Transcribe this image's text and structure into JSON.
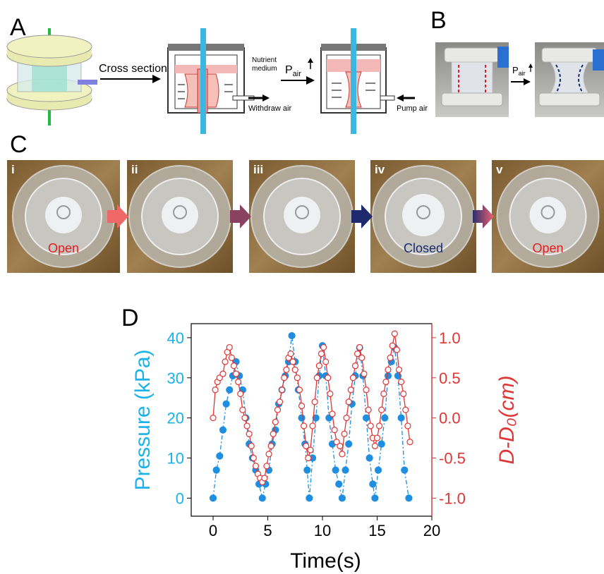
{
  "panel_labels": [
    "A",
    "B",
    "C",
    "D"
  ],
  "panel_a": {
    "cross_section": "Cross section",
    "nutrient": "Nutrient",
    "medium": "medium",
    "withdraw": "Withdraw air",
    "p": "P",
    "air": "air",
    "pump": "Pump air"
  },
  "panel_b": {
    "p": "P",
    "air": "air"
  },
  "panel_c": {
    "frames": [
      "i",
      "ii",
      "iii",
      "iv",
      "v"
    ],
    "states": [
      "Open",
      "Closed",
      "Open"
    ]
  },
  "chart_data": {
    "type": "line",
    "xlabel": "Time(s)",
    "ylabel": "Pressure (kPa)",
    "y2label": "D-D₀(cm)",
    "xlim": [
      -2,
      20
    ],
    "xticks": [
      0,
      5,
      10,
      15,
      20
    ],
    "ylim": [
      -4.5,
      43.5
    ],
    "yticks": [
      0,
      10,
      20,
      30,
      40
    ],
    "y2lim": [
      -1.225,
      1.175
    ],
    "y2ticks": [
      {
        "value": -1,
        "label": "-1.0"
      },
      -0.5,
      {
        "value": 0,
        "label": "0.0"
      },
      0.5,
      {
        "value": 1,
        "label": "1.0"
      }
    ],
    "series": [
      {
        "color": "#1e8fe0",
        "marker": "filled",
        "x": [
          0,
          0.3,
          0.6,
          0.9,
          1.2,
          1.5,
          1.8,
          2.1,
          2.4,
          2.7,
          3.0,
          3.3,
          3.6,
          3.9,
          4.2,
          4.5,
          4.8,
          5.1,
          5.4,
          5.7,
          6.0,
          6.3,
          6.6,
          6.9,
          7.2,
          7.5,
          7.8,
          8.1,
          8.4,
          8.6,
          8.8,
          9.1,
          9.4,
          9.7,
          10.0,
          10.3,
          10.6,
          10.9,
          11.2,
          11.5,
          11.8,
          12.1,
          12.4,
          12.7,
          13.0,
          13.4,
          13.7,
          14.0,
          14.3,
          14.6,
          14.8,
          15.1,
          15.4,
          15.7,
          16.0,
          16.3,
          16.6,
          16.9,
          17.2,
          17.5,
          17.9
        ],
        "values": [
          0,
          7,
          10.5,
          17,
          23.5,
          27,
          30.5,
          34,
          30.5,
          27,
          20,
          13.5,
          10,
          7,
          3.5,
          0,
          3.5,
          7,
          13.5,
          17,
          23.5,
          27,
          30.5,
          34,
          40.5,
          34,
          27,
          20,
          13.5,
          7,
          0,
          10,
          20,
          30.5,
          38,
          30.5,
          20,
          13.5,
          7,
          3.5,
          0,
          7,
          13.5,
          23.5,
          30.5,
          37.5,
          30.5,
          20,
          10,
          3.5,
          0,
          7,
          13.5,
          20,
          30.5,
          34,
          37.5,
          30.5,
          20,
          7,
          0
        ]
      },
      {
        "color": "#e03535",
        "marker": "open",
        "axis": "y2",
        "x": [
          0,
          0.2,
          0.4,
          0.6,
          0.9,
          1.1,
          1.3,
          1.5,
          1.7,
          1.9,
          2.1,
          2.3,
          2.5,
          2.7,
          2.9,
          3.1,
          3.3,
          3.5,
          3.7,
          3.9,
          4.1,
          4.3,
          4.5,
          4.7,
          4.9,
          5.1,
          5.3,
          5.5,
          5.7,
          5.9,
          6.1,
          6.3,
          6.5,
          6.7,
          6.9,
          7.1,
          7.3,
          7.5,
          7.7,
          7.9,
          8.1,
          8.3,
          8.5,
          8.7,
          8.9,
          9.1,
          9.3,
          9.5,
          9.7,
          9.9,
          10.1,
          10.3,
          10.5,
          10.7,
          10.9,
          11.1,
          11.3,
          11.6,
          11.8,
          12.0,
          12.2,
          12.4,
          12.6,
          12.8,
          13.0,
          13.2,
          13.4,
          13.6,
          13.8,
          14.0,
          14.2,
          14.4,
          14.6,
          14.8,
          15.0,
          15.2,
          15.4,
          15.6,
          15.8,
          16.0,
          16.2,
          16.4,
          16.6,
          16.8,
          17.0,
          17.2,
          17.4,
          17.6,
          17.8,
          18.0
        ],
        "values": [
          0.0,
          0.35,
          0.45,
          0.5,
          0.55,
          0.7,
          0.82,
          0.88,
          0.75,
          0.65,
          0.55,
          0.45,
          0.3,
          0.1,
          0.0,
          -0.1,
          -0.2,
          -0.35,
          -0.5,
          -0.6,
          -0.7,
          -0.75,
          -0.8,
          -0.75,
          -0.6,
          -0.45,
          -0.35,
          -0.2,
          -0.05,
          0.1,
          0.2,
          0.35,
          0.5,
          0.6,
          0.75,
          0.8,
          0.7,
          0.6,
          0.5,
          0.35,
          0.15,
          -0.1,
          -0.35,
          -0.5,
          -0.4,
          -0.1,
          0.2,
          0.5,
          0.65,
          0.8,
          0.88,
          0.7,
          0.5,
          0.3,
          0.05,
          -0.15,
          -0.3,
          -0.35,
          -0.45,
          -0.2,
          0.0,
          0.2,
          0.35,
          0.5,
          0.65,
          0.8,
          0.88,
          0.75,
          0.55,
          0.35,
          0.1,
          -0.1,
          -0.25,
          -0.35,
          -0.25,
          -0.1,
          0.1,
          0.3,
          0.45,
          0.6,
          0.75,
          0.9,
          1.05,
          0.85,
          0.6,
          0.45,
          0.3,
          0.1,
          -0.1,
          -0.3
        ]
      }
    ]
  }
}
